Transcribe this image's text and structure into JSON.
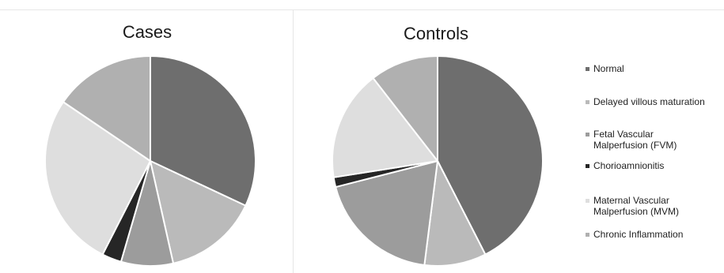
{
  "chart_data": [
    {
      "type": "pie",
      "title": "Cases",
      "categories": [
        "Normal",
        "Delayed villous maturation",
        "Fetal Vascular\nMalperfusion (FVM)",
        "Chorioamnionitis",
        "Maternal Vascular\nMalperfusion (MVM)",
        "Chronic Inflammation"
      ],
      "values": [
        32,
        14.5,
        8,
        3,
        27,
        15.5
      ],
      "colors": [
        "#6e6e6e",
        "#bababa",
        "#9c9c9c",
        "#262626",
        "#dedede",
        "#b0b0b0"
      ],
      "start": "12 o'clock",
      "direction": "clockwise"
    },
    {
      "type": "pie",
      "title": "Controls",
      "categories": [
        "Normal",
        "Delayed villous maturation",
        "Fetal Vascular\nMalperfusion (FVM)",
        "Chorioamnionitis",
        "Maternal Vascular\nMalperfusion (MVM)",
        "Chronic Inflammation"
      ],
      "values": [
        42.5,
        9.5,
        19,
        1.5,
        17,
        10.5
      ],
      "colors": [
        "#6e6e6e",
        "#bababa",
        "#9c9c9c",
        "#262626",
        "#dedede",
        "#b0b0b0"
      ],
      "start": "12 o'clock",
      "direction": "clockwise"
    }
  ],
  "legend": {
    "placement": "right",
    "items": [
      {
        "label": "Normal",
        "color": "#6e6e6e"
      },
      {
        "label": "Delayed villous maturation",
        "color": "#bababa"
      },
      {
        "label": "Fetal Vascular\nMalperfusion (FVM)",
        "color": "#9c9c9c"
      },
      {
        "label": "Chorioamnionitis",
        "color": "#262626"
      },
      {
        "label": "Maternal Vascular\nMalperfusion (MVM)",
        "color": "#dedede"
      },
      {
        "label": "Chronic Inflammation",
        "color": "#b0b0b0"
      }
    ]
  }
}
